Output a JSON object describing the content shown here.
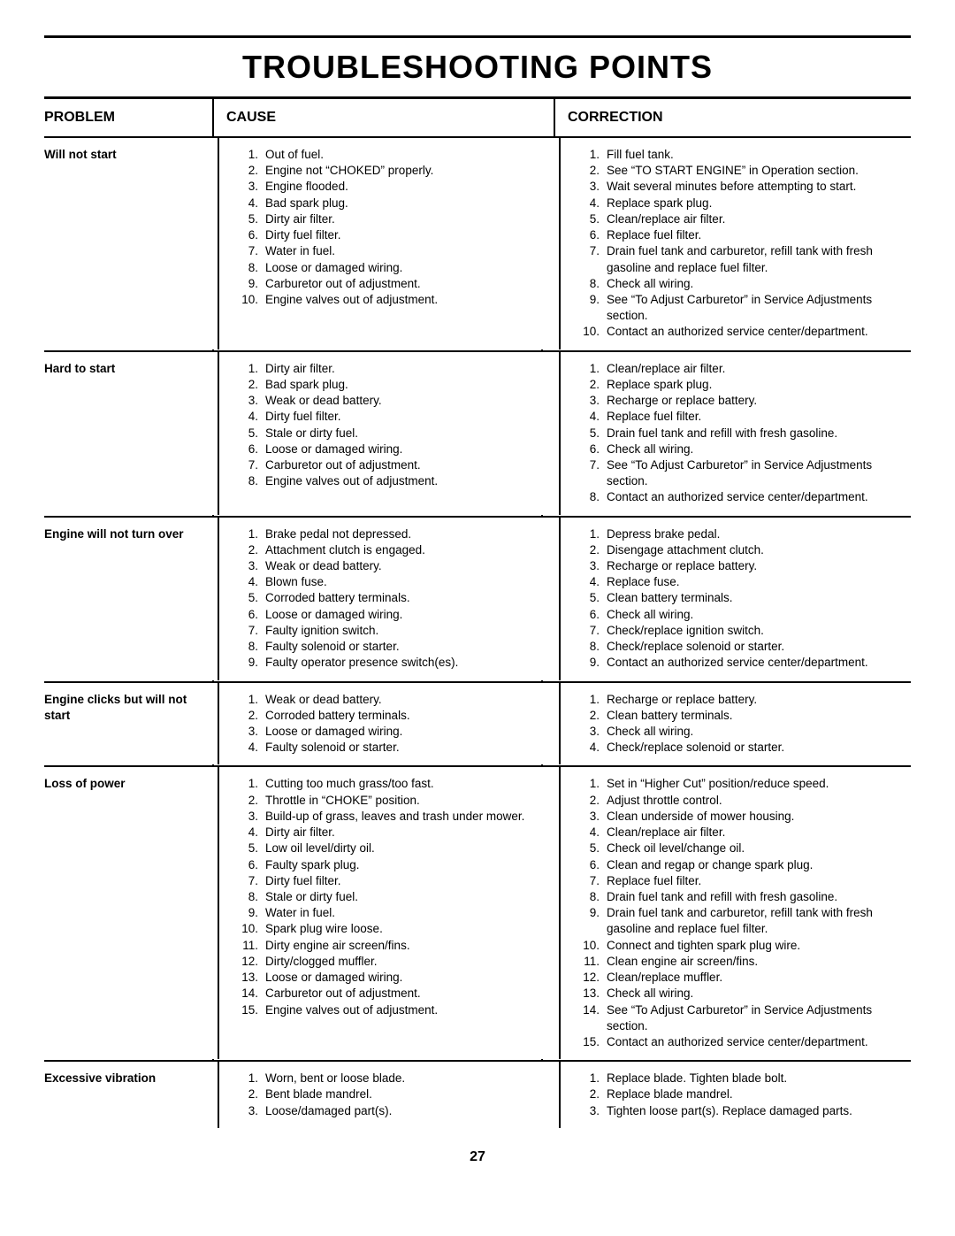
{
  "title": "TROUBLESHOOTING POINTS",
  "header": {
    "problem": "PROBLEM",
    "cause": "CAUSE",
    "correction": "CORRECTION"
  },
  "pageNumber": "27",
  "rows": [
    {
      "problem": "Will not start",
      "causes": [
        "Out of fuel.",
        "Engine not “CHOKED” properly.",
        "Engine flooded.",
        "Bad spark plug.",
        "Dirty air filter.",
        "Dirty fuel filter.",
        "Water in fuel.",
        "Loose or damaged wiring.",
        "Carburetor out of adjustment.",
        "Engine valves out of adjustment."
      ],
      "corrections": [
        "Fill fuel tank.",
        "See “TO START ENGINE” in Operation section.",
        "Wait several minutes before attempting to start.",
        "Replace spark plug.",
        "Clean/replace air filter.",
        "Replace fuel filter.",
        "Drain fuel tank and carburetor, refill tank with fresh gasoline and replace fuel filter.",
        "Check all wiring.",
        "See “To Adjust Carburetor” in Service Adjustments section.",
        "Contact an authorized service center/department."
      ]
    },
    {
      "problem": "Hard to start",
      "causes": [
        "Dirty air filter.",
        "Bad spark plug.",
        "Weak or dead battery.",
        "Dirty fuel filter.",
        "Stale or dirty fuel.",
        "Loose or damaged wiring.",
        "Carburetor out of adjustment.",
        "Engine valves out of adjustment."
      ],
      "corrections": [
        "Clean/replace air filter.",
        "Replace spark plug.",
        "Recharge or replace battery.",
        "Replace fuel filter.",
        "Drain fuel tank and refill with fresh gasoline.",
        "Check all wiring.",
        "See “To Adjust Carburetor” in Service Adjustments section.",
        "Contact an authorized service center/department."
      ]
    },
    {
      "problem": "Engine will not turn over",
      "causes": [
        "Brake pedal not depressed.",
        "Attachment clutch is engaged.",
        "Weak or dead battery.",
        "Blown fuse.",
        "Corroded battery terminals.",
        "Loose or damaged wiring.",
        "Faulty ignition switch.",
        "Faulty solenoid or starter.",
        "Faulty operator presence switch(es)."
      ],
      "corrections": [
        "Depress brake pedal.",
        "Disengage attachment clutch.",
        "Recharge or replace battery.",
        "Replace fuse.",
        "Clean battery terminals.",
        "Check all wiring.",
        "Check/replace ignition switch.",
        "Check/replace solenoid or starter.",
        "Contact an authorized service center/department."
      ]
    },
    {
      "problem": "Engine clicks but will not start",
      "causes": [
        "Weak or dead battery.",
        "Corroded battery terminals.",
        "Loose or damaged wiring.",
        "Faulty solenoid or starter."
      ],
      "corrections": [
        "Recharge or replace battery.",
        "Clean battery terminals.",
        "Check all wiring.",
        "Check/replace solenoid or starter."
      ]
    },
    {
      "problem": "Loss of power",
      "causes": [
        "Cutting too much grass/too fast.",
        "Throttle in “CHOKE” position.",
        "Build-up of grass, leaves and trash under mower.",
        "Dirty air filter.",
        "Low oil level/dirty oil.",
        "Faulty spark plug.",
        "Dirty fuel filter.",
        "Stale or dirty fuel.",
        "Water in fuel.",
        "Spark plug wire loose.",
        "Dirty engine air screen/fins.",
        "Dirty/clogged muffler.",
        "Loose or damaged wiring.",
        "Carburetor out of adjustment.",
        "Engine valves out of adjustment."
      ],
      "corrections": [
        "Set in “Higher Cut” position/reduce speed.",
        "Adjust throttle control.",
        "Clean underside of mower housing.",
        "Clean/replace air filter.",
        "Check oil level/change oil.",
        "Clean and regap or change spark plug.",
        "Replace fuel filter.",
        "Drain fuel tank and refill with fresh gasoline.",
        "Drain fuel tank and carburetor, refill tank with fresh gasoline and replace fuel filter.",
        "Connect and tighten spark plug wire.",
        "Clean engine air screen/fins.",
        "Clean/replace muffler.",
        "Check all wiring.",
        "See “To Adjust Carburetor” in Service Adjustments section.",
        "Contact an authorized service center/department."
      ]
    },
    {
      "problem": "Excessive vibration",
      "causes": [
        "Worn, bent or loose blade.",
        "Bent blade mandrel.",
        "Loose/damaged part(s)."
      ],
      "corrections": [
        "Replace blade.  Tighten blade bolt.",
        "Replace blade mandrel.",
        "Tighten loose part(s).  Replace damaged parts."
      ]
    }
  ]
}
